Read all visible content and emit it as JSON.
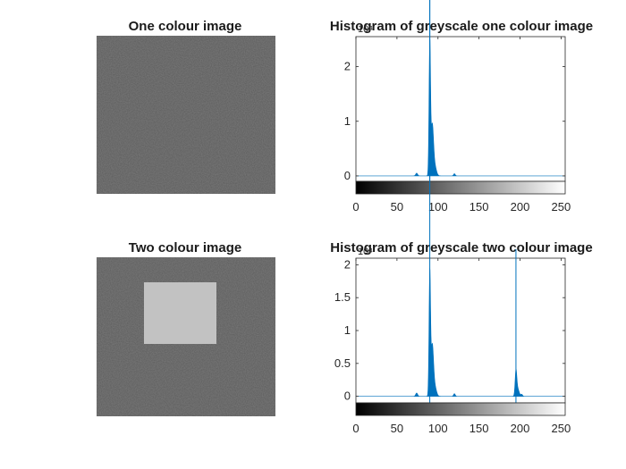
{
  "figure": {
    "background": "#ffffff"
  },
  "images": [
    {
      "title": "One colour image",
      "background_grey": "#5a5a5a",
      "square_grey": null
    },
    {
      "title": "Two colour image",
      "background_grey": "#5a5a5a",
      "square_grey": "#c2c2c2"
    }
  ],
  "chart_data": [
    {
      "type": "area",
      "title": "Histogram of greyscale one colour image",
      "xlabel": "",
      "ylabel": "",
      "xlim": [
        0,
        255
      ],
      "ylim": [
        -0.1,
        2.55
      ],
      "y_multiplier_label": "10⁴",
      "x_ticks": [
        "0",
        "50",
        "100",
        "150",
        "200",
        "250"
      ],
      "y_ticks": [
        "0",
        "1",
        "2"
      ],
      "series_color": "#0072bd",
      "peaks": [
        {
          "center": 74,
          "height": 0.05,
          "width": 1.2
        },
        {
          "center": 90,
          "height": 2.4,
          "width": 0.9
        },
        {
          "center": 93,
          "height": 0.9,
          "width": 1.5
        },
        {
          "center": 96,
          "height": 0.18,
          "width": 2.0
        },
        {
          "center": 120,
          "height": 0.04,
          "width": 1.0
        }
      ],
      "marker_line_x": 90,
      "grey_colorbar": true
    },
    {
      "type": "area",
      "title": "Histogram of greyscale two colour image",
      "xlabel": "",
      "ylabel": "",
      "xlim": [
        0,
        255
      ],
      "ylim": [
        -0.1,
        2.1
      ],
      "y_multiplier_label": "10⁴",
      "x_ticks": [
        "0",
        "50",
        "100",
        "150",
        "200",
        "250"
      ],
      "y_ticks": [
        "0",
        "0.5",
        "1",
        "1.5",
        "2"
      ],
      "series_color": "#0072bd",
      "peaks": [
        {
          "center": 74,
          "height": 0.05,
          "width": 1.2
        },
        {
          "center": 90,
          "height": 1.85,
          "width": 0.9
        },
        {
          "center": 93,
          "height": 0.75,
          "width": 1.5
        },
        {
          "center": 96,
          "height": 0.15,
          "width": 2.0
        },
        {
          "center": 120,
          "height": 0.04,
          "width": 1.0
        },
        {
          "center": 195,
          "height": 0.35,
          "width": 1.0
        },
        {
          "center": 197,
          "height": 0.12,
          "width": 1.8
        },
        {
          "center": 202,
          "height": 0.03,
          "width": 1.0
        }
      ],
      "marker_line_x": 195,
      "marker_line2_x": 90,
      "grey_colorbar": true
    }
  ]
}
